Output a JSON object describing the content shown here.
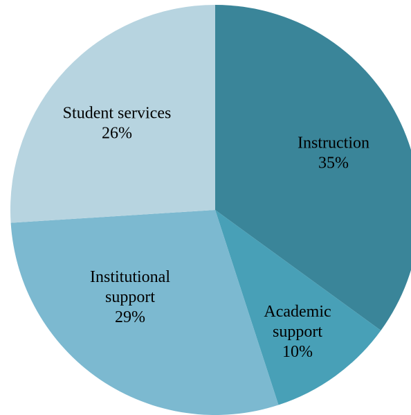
{
  "chart_data": {
    "type": "pie",
    "title": "",
    "start_angle_deg": 0,
    "direction": "clockwise",
    "slices": [
      {
        "label_lines": [
          "Instruction"
        ],
        "value_label": "35%",
        "value": 35,
        "color": "#3A8599"
      },
      {
        "label_lines": [
          "Academic",
          "support"
        ],
        "value_label": "10%",
        "value": 10,
        "color": "#48A0B7"
      },
      {
        "label_lines": [
          "Institutional",
          "support"
        ],
        "value_label": "29%",
        "value": 29,
        "color": "#7CB9D0"
      },
      {
        "label_lines": [
          "Student services"
        ],
        "value_label": "26%",
        "value": 26,
        "color": "#B7D4E0"
      }
    ]
  }
}
